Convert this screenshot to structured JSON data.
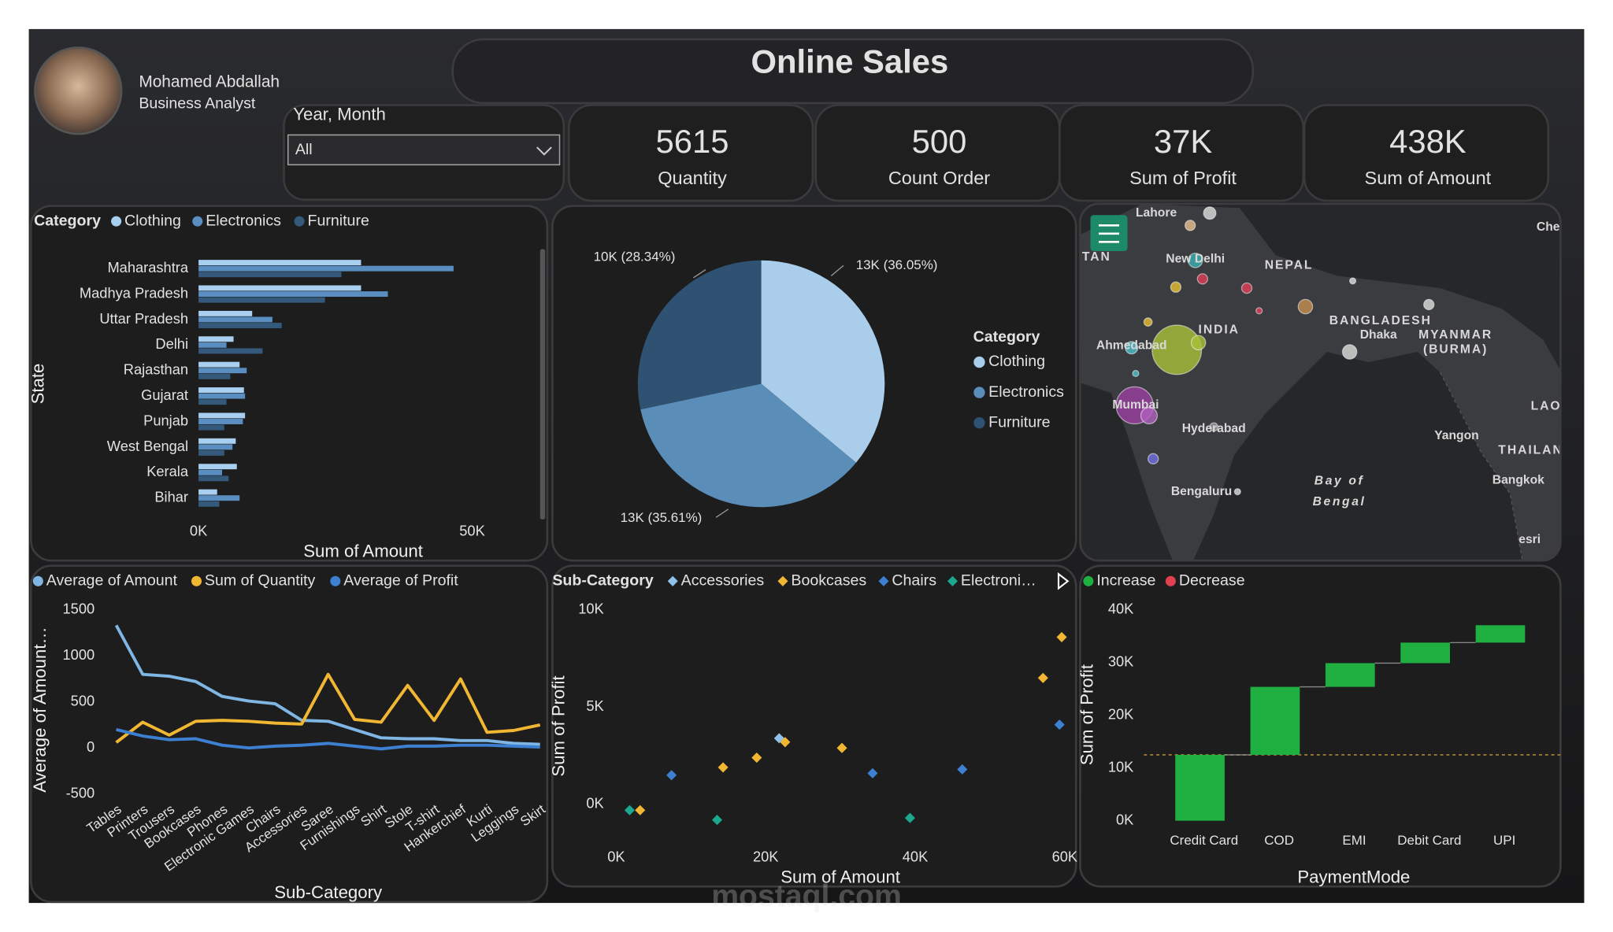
{
  "header": {
    "name": "Mohamed Abdallah",
    "role": "Business Analyst",
    "title": "Online Sales"
  },
  "slicer": {
    "label": "Year, Month",
    "value": "All"
  },
  "kpis": [
    {
      "value": 5615,
      "label": "Quantity"
    },
    {
      "value": 500,
      "label": "Count Order"
    },
    {
      "value": 37000,
      "value_label": "37K",
      "label": "Sum of Profit"
    },
    {
      "value": 438000,
      "value_label": "438K",
      "label": "Sum of Amount"
    }
  ],
  "map": {
    "labels": [
      "Lahore",
      "New Delhi",
      "NEPAL",
      "INDIA",
      "BANGLADESH",
      "Dhaka",
      "MYANMAR",
      "(BURMA)",
      "Ahmedabad",
      "Mumbai",
      "Hyderabad",
      "Bengaluru",
      "Bay of",
      "Bengal",
      "Yangon",
      "THAILAN",
      "Bangkok",
      "LAO",
      "Che",
      "TAN",
      "esri"
    ]
  },
  "watermark": "mostaql.com",
  "chart_data": [
    {
      "type": "bar",
      "orientation": "horizontal",
      "legend_title": "Category",
      "x_label": "Sum of Amount",
      "y_label": "State",
      "categories": [
        "Maharashtra",
        "Madhya Pradesh",
        "Uttar Pradesh",
        "Delhi",
        "Rajasthan",
        "Gujarat",
        "Punjab",
        "West Bengal",
        "Kerala",
        "Bihar"
      ],
      "series": [
        {
          "name": "Clothing",
          "color": "#a9cff0",
          "values": [
            29700,
            29700,
            9800,
            6400,
            7500,
            8300,
            8500,
            6800,
            7000,
            3400
          ]
        },
        {
          "name": "Electronics",
          "color": "#5a8ec0",
          "values": [
            46600,
            34600,
            13500,
            5100,
            8800,
            8500,
            8100,
            6200,
            4300,
            7500
          ]
        },
        {
          "name": "Furniture",
          "color": "#34597a",
          "values": [
            26100,
            23100,
            15200,
            11700,
            5800,
            5100,
            4700,
            4700,
            5500,
            3800
          ]
        }
      ],
      "xlim": [
        0,
        60000
      ],
      "xticks": [
        {
          "value": 0,
          "label": "0K"
        },
        {
          "value": 50000,
          "label": "50K"
        }
      ],
      "grid": false
    },
    {
      "type": "pie",
      "legend_title": "Category",
      "categories": [
        "Clothing",
        "Electronics",
        "Furniture"
      ],
      "values": [
        36.05,
        35.61,
        28.34
      ],
      "value_labels": [
        "13K (36.05%)",
        "13K (35.61%)",
        "10K (28.34%)"
      ],
      "colors": [
        "#a9cdeb",
        "#5a8db8",
        "#2f5273"
      ]
    },
    {
      "type": "line",
      "x_label": "Sub-Category",
      "y_label": "Average of Amount…",
      "categories": [
        "Tables",
        "Printers",
        "Trousers",
        "Bookcases",
        "Phones",
        "Electronic Games",
        "Chairs",
        "Accessories",
        "Saree",
        "Furnishings",
        "Shirt",
        "Stole",
        "T-shirt",
        "Hankerchief",
        "Kurti",
        "Leggings",
        "Skirt"
      ],
      "series": [
        {
          "name": "Average of Amount",
          "color": "#7fb6e3",
          "values": [
            1333,
            800,
            780,
            722,
            560,
            510,
            480,
            300,
            290,
            200,
            110,
            100,
            100,
            80,
            80,
            50,
            40
          ]
        },
        {
          "name": "Sum of Quantity",
          "color": "#f2b732",
          "values": [
            60,
            280,
            140,
            290,
            300,
            290,
            270,
            260,
            800,
            310,
            280,
            680,
            300,
            750,
            170,
            190,
            250
          ]
        },
        {
          "name": "Average of Profit",
          "color": "#3d7fd0",
          "values": [
            200,
            130,
            90,
            100,
            30,
            0,
            20,
            30,
            50,
            20,
            -10,
            20,
            20,
            30,
            30,
            20,
            10
          ]
        }
      ],
      "ylim": [
        -500,
        1500
      ],
      "yticks": [
        -500,
        0,
        500,
        1000,
        1500
      ],
      "grid": false
    },
    {
      "type": "scatter",
      "legend_title": "Sub-Category",
      "x_label": "Sum of Amount",
      "y_label": "Sum of Profit",
      "series": [
        {
          "name": "Accessories",
          "color": "#8fc1ea",
          "x": [
            21800
          ],
          "y": [
            3400
          ]
        },
        {
          "name": "Bookcases",
          "color": "#f2b732",
          "x": [
            59600,
            57100,
            3200,
            14300,
            18800,
            22600,
            30200
          ],
          "y": [
            8600,
            6500,
            -300,
            1900,
            2400,
            3200,
            2900
          ]
        },
        {
          "name": "Chairs",
          "color": "#3d7fd0",
          "x": [
            7400,
            34300,
            46300,
            59300
          ],
          "y": [
            1500,
            1600,
            1800,
            4100
          ]
        },
        {
          "name": "Electroni…",
          "color": "#1aa88f",
          "x": [
            1800,
            13500,
            39300
          ],
          "y": [
            -300,
            -800,
            -700
          ]
        }
      ],
      "xlim": [
        0,
        60000
      ],
      "xticks": [
        {
          "value": 0,
          "label": "0K"
        },
        {
          "value": 20000,
          "label": "20K"
        },
        {
          "value": 40000,
          "label": "40K"
        },
        {
          "value": 60000,
          "label": "60K"
        }
      ],
      "ylim": [
        -1000,
        10000
      ],
      "yticks": [
        {
          "value": 0,
          "label": "0K"
        },
        {
          "value": 5000,
          "label": "5K"
        },
        {
          "value": 10000,
          "label": "10K"
        }
      ]
    },
    {
      "type": "waterfall",
      "x_label": "PaymentMode",
      "y_label": "Sum of Profit",
      "legend": [
        {
          "name": "Increase",
          "color": "#1fb041"
        },
        {
          "name": "Decrease",
          "color": "#e0404f"
        }
      ],
      "categories": [
        "Credit Card",
        "COD",
        "EMI",
        "Debit Card",
        "UPI"
      ],
      "values": [
        12500,
        12900,
        4500,
        3900,
        3300
      ],
      "ylim": [
        0,
        40000
      ],
      "yticks": [
        {
          "value": 0,
          "label": "0K"
        },
        {
          "value": 10000,
          "label": "10K"
        },
        {
          "value": 20000,
          "label": "20K"
        },
        {
          "value": 30000,
          "label": "30K"
        },
        {
          "value": 40000,
          "label": "40K"
        }
      ]
    }
  ]
}
